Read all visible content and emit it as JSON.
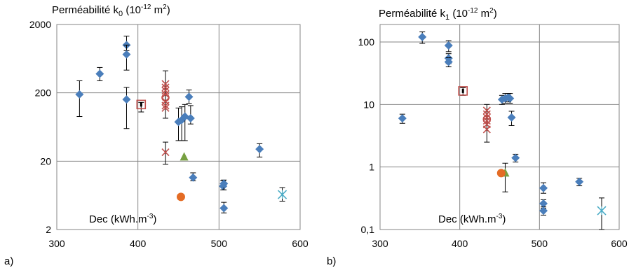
{
  "chart_data": [
    {
      "type": "scatter",
      "panel_label": "a)",
      "title_main": "Perméabilité k",
      "title_sub": "0",
      "title_unit_open": " (10",
      "title_unit_exp": "-12",
      "title_unit_mid": " m",
      "title_unit_exp2": "2",
      "title_unit_close": ")",
      "xlabel_main": "Dec (kWh.m",
      "xlabel_exp": "-3",
      "xlabel_close": ")",
      "x_ticks": [
        "300",
        "400",
        "500",
        "600"
      ],
      "y_ticks": [
        "2000",
        "200",
        "20",
        "2"
      ],
      "xlim": [
        300,
        600
      ],
      "ylim": [
        2,
        2000
      ],
      "yscale": "log",
      "grid": true,
      "series": [
        {
          "marker": "diamond",
          "color": "#4a7ebb",
          "points": [
            {
              "x": 328,
              "y": 190,
              "lo": 90,
              "hi": 300
            },
            {
              "x": 353,
              "y": 380,
              "lo": 300,
              "hi": 470
            },
            {
              "x": 386,
              "y": 1000,
              "lo": 830,
              "hi": 1350
            },
            {
              "x": 386,
              "y": 730,
              "lo": 430,
              "hi": 1000
            },
            {
              "x": 386,
              "y": 160,
              "lo": 60,
              "hi": 240
            },
            {
              "x": 450,
              "y": 75,
              "lo": 40,
              "hi": 120
            },
            {
              "x": 454,
              "y": 80,
              "lo": 40,
              "hi": 125
            },
            {
              "x": 458,
              "y": 90,
              "lo": 40,
              "hi": 135
            },
            {
              "x": 463,
              "y": 175,
              "lo": 140,
              "hi": 220
            },
            {
              "x": 465,
              "y": 85,
              "lo": 70,
              "hi": 130
            },
            {
              "x": 468,
              "y": 11.5,
              "lo": 10.3,
              "hi": 13.5
            },
            {
              "x": 505,
              "y": 8.6,
              "lo": 7.6,
              "hi": 10.4
            },
            {
              "x": 506,
              "y": 9.4,
              "lo": 7.6,
              "hi": 10.6
            },
            {
              "x": 506,
              "y": 4.1,
              "lo": 3.5,
              "hi": 5.0
            },
            {
              "x": 550,
              "y": 30,
              "lo": 23,
              "hi": 36
            }
          ]
        },
        {
          "marker": "x-cross",
          "color": "#c0504d",
          "points": [
            {
              "x": 434,
              "y": 270
            },
            {
              "x": 434,
              "y": 240
            },
            {
              "x": 434,
              "y": 215
            },
            {
              "x": 434,
              "y": 190
            },
            {
              "x": 434,
              "y": 150
            },
            {
              "x": 434,
              "y": 130
            },
            {
              "x": 434,
              "y": 120
            },
            {
              "x": 434,
              "y": 27,
              "lo": 18,
              "hi": 38
            }
          ],
          "errbar": {
            "x": 434,
            "lo": 85,
            "hi": 420
          }
        },
        {
          "marker": "circle-open",
          "color": "#c0504d",
          "points": [
            {
              "x": 434,
              "y": 170
            }
          ]
        },
        {
          "marker": "square-open",
          "color": "#c0504d",
          "points": [
            {
              "x": 404,
              "y": 135,
              "lo": 105,
              "hi": 145
            }
          ]
        },
        {
          "marker": "triangle",
          "color": "#77a041",
          "points": [
            {
              "x": 457,
              "y": 23
            }
          ]
        },
        {
          "marker": "circle",
          "color": "#e46c25",
          "points": [
            {
              "x": 453,
              "y": 6.0
            }
          ]
        },
        {
          "marker": "star",
          "color": "#4bacc6",
          "points": [
            {
              "x": 578,
              "y": 6.5,
              "lo": 5.2,
              "hi": 8.2
            }
          ]
        }
      ]
    },
    {
      "type": "scatter",
      "panel_label": "b)",
      "title_main": "Perméabilité k",
      "title_sub": "1",
      "title_unit_open": " (10",
      "title_unit_exp": "-12",
      "title_unit_mid": " m",
      "title_unit_exp2": "2",
      "title_unit_close": ")",
      "xlabel_main": "Dec (kWh.m",
      "xlabel_exp": "-3",
      "xlabel_close": ")",
      "x_ticks": [
        "300",
        "400",
        "500",
        "600"
      ],
      "y_ticks": [
        "100",
        "10",
        "1",
        "0,1"
      ],
      "xlim": [
        300,
        600
      ],
      "ylim": [
        0.1,
        200
      ],
      "yscale": "log",
      "grid": true,
      "series": [
        {
          "marker": "diamond",
          "color": "#4a7ebb",
          "points": [
            {
              "x": 328,
              "y": 6.0,
              "lo": 5.0,
              "hi": 7.0
            },
            {
              "x": 353,
              "y": 120,
              "lo": 95,
              "hi": 145
            },
            {
              "x": 386,
              "y": 88,
              "lo": 70,
              "hi": 105
            },
            {
              "x": 386,
              "y": 55,
              "lo": 45,
              "hi": 65
            },
            {
              "x": 386,
              "y": 48,
              "lo": 40,
              "hi": 56
            },
            {
              "x": 453,
              "y": 12,
              "lo": 10,
              "hi": 14
            },
            {
              "x": 457,
              "y": 12.5,
              "lo": 10.5,
              "hi": 15
            },
            {
              "x": 461,
              "y": 13,
              "lo": 11,
              "hi": 15
            },
            {
              "x": 463,
              "y": 12.5,
              "lo": 10.5,
              "hi": 15
            },
            {
              "x": 465,
              "y": 6.2,
              "lo": 4.6,
              "hi": 7.8
            },
            {
              "x": 470,
              "y": 1.4,
              "lo": 1.2,
              "hi": 1.6
            },
            {
              "x": 505,
              "y": 0.46,
              "lo": 0.38,
              "hi": 0.56
            },
            {
              "x": 505,
              "y": 0.26,
              "lo": 0.22,
              "hi": 0.3
            },
            {
              "x": 505,
              "y": 0.2,
              "lo": 0.17,
              "hi": 0.23
            },
            {
              "x": 550,
              "y": 0.58,
              "lo": 0.5,
              "hi": 0.66
            }
          ]
        },
        {
          "marker": "x-cross",
          "color": "#c0504d",
          "points": [
            {
              "x": 434,
              "y": 8.0
            },
            {
              "x": 434,
              "y": 7.0
            },
            {
              "x": 434,
              "y": 6.2
            },
            {
              "x": 434,
              "y": 5.5
            },
            {
              "x": 434,
              "y": 4.8
            },
            {
              "x": 434,
              "y": 4.0
            }
          ],
          "errbar": {
            "x": 434,
            "lo": 2.5,
            "hi": 10
          }
        },
        {
          "marker": "circle-open",
          "color": "#c0504d",
          "points": [
            {
              "x": 434,
              "y": 5.8
            }
          ]
        },
        {
          "marker": "square-open",
          "color": "#c0504d",
          "points": [
            {
              "x": 404,
              "y": 16.5,
              "lo": 14,
              "hi": 18.5
            }
          ]
        },
        {
          "marker": "triangle",
          "color": "#77a041",
          "points": [
            {
              "x": 457,
              "y": 0.8,
              "lo": 0.4,
              "hi": 1.15
            }
          ]
        },
        {
          "marker": "circle",
          "color": "#e46c25",
          "points": [
            {
              "x": 452,
              "y": 0.8
            }
          ]
        },
        {
          "marker": "star",
          "color": "#4bacc6",
          "points": [
            {
              "x": 578,
              "y": 0.2,
              "lo": 0.1,
              "hi": 0.32
            }
          ]
        }
      ]
    }
  ]
}
